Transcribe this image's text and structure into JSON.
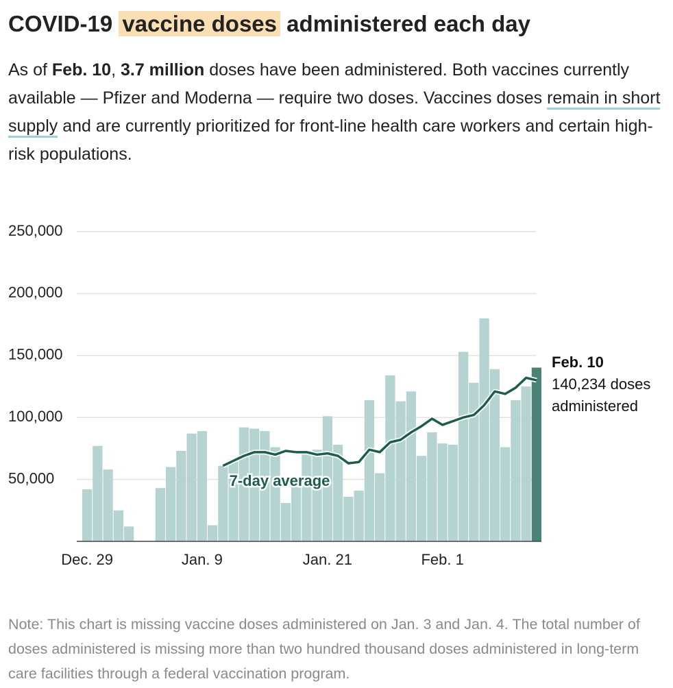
{
  "chart_data": {
    "type": "bar",
    "title": [
      {
        "text": "COVID-19 "
      },
      {
        "text": "vaccine doses",
        "style": "highlight"
      },
      {
        "text": " administered each day"
      }
    ],
    "subtitle": [
      {
        "text": "As of "
      },
      {
        "text": "Feb. 10",
        "style": "bold"
      },
      {
        "text": ", "
      },
      {
        "text": "3.7 million",
        "style": "bold"
      },
      {
        "text": " doses have been administered. Both vaccines currently available — Pfizer and Moderna — require two doses. Vaccines doses "
      },
      {
        "text": "remain in short supply",
        "style": "link"
      },
      {
        "text": " and are currently prioritized for front-line health care workers and certain high-risk populations."
      }
    ],
    "note": "Note: This chart is missing vaccine doses administered on Jan. 3 and Jan. 4. The total number of doses administered is missing more than two hundred thousand doses administered in long-term care facilities through a federal vaccination program.",
    "categories": [
      "Dec. 29",
      null,
      null,
      null,
      null,
      null,
      null,
      null,
      null,
      null,
      null,
      "Jan. 9",
      null,
      null,
      null,
      null,
      null,
      null,
      null,
      null,
      null,
      null,
      null,
      "Jan. 21",
      null,
      null,
      null,
      null,
      null,
      null,
      null,
      null,
      null,
      null,
      "Feb. 1",
      null,
      null,
      null,
      null,
      null,
      null,
      null,
      null,
      null
    ],
    "series": [
      {
        "color": "#b4d3d1",
        "highlight_color": "#4b8276",
        "values": [
          42000,
          77000,
          58000,
          25000,
          12000,
          null,
          null,
          43000,
          60000,
          73000,
          87000,
          89000,
          13000,
          61000,
          66000,
          92000,
          91000,
          89000,
          76000,
          31000,
          47000,
          72000,
          74000,
          101000,
          78000,
          36000,
          41000,
          114000,
          55000,
          134000,
          113000,
          121000,
          69000,
          88000,
          79000,
          78000,
          153000,
          128000,
          180000,
          139000,
          76000,
          114000,
          125000,
          140234
        ],
        "highlight": [
          false,
          false,
          false,
          false,
          false,
          false,
          false,
          false,
          false,
          false,
          false,
          false,
          false,
          false,
          false,
          false,
          false,
          false,
          false,
          false,
          false,
          false,
          false,
          false,
          false,
          false,
          false,
          false,
          false,
          false,
          false,
          false,
          false,
          false,
          false,
          false,
          false,
          false,
          false,
          false,
          false,
          false,
          false,
          true
        ]
      },
      {
        "name": "7-day average",
        "type": "line",
        "color": "#1e5c4c",
        "values": [
          null,
          null,
          null,
          null,
          null,
          null,
          null,
          null,
          null,
          null,
          null,
          null,
          null,
          61000,
          65000,
          69000,
          72000,
          72000,
          70000,
          73000,
          72000,
          72000,
          70000,
          71000,
          69000,
          63000,
          64000,
          74000,
          72000,
          80000,
          82000,
          88000,
          93000,
          99000,
          94000,
          97000,
          100000,
          102000,
          110000,
          121000,
          119000,
          124000,
          132000,
          130000
        ]
      }
    ],
    "annotation": {
      "lines": [
        {
          "text": "Feb. 10",
          "style": "bold"
        },
        {
          "text": "140,234 doses"
        },
        {
          "text": "administered"
        }
      ]
    },
    "ylim": [
      0,
      250000
    ],
    "yticks": [
      {
        "value": 50000,
        "label": "50,000"
      },
      {
        "value": 100000,
        "label": "100,000"
      },
      {
        "value": 150000,
        "label": "150,000"
      },
      {
        "value": 200000,
        "label": "200,000"
      },
      {
        "value": 250000,
        "label": "250,000"
      }
    ],
    "grid": true
  }
}
